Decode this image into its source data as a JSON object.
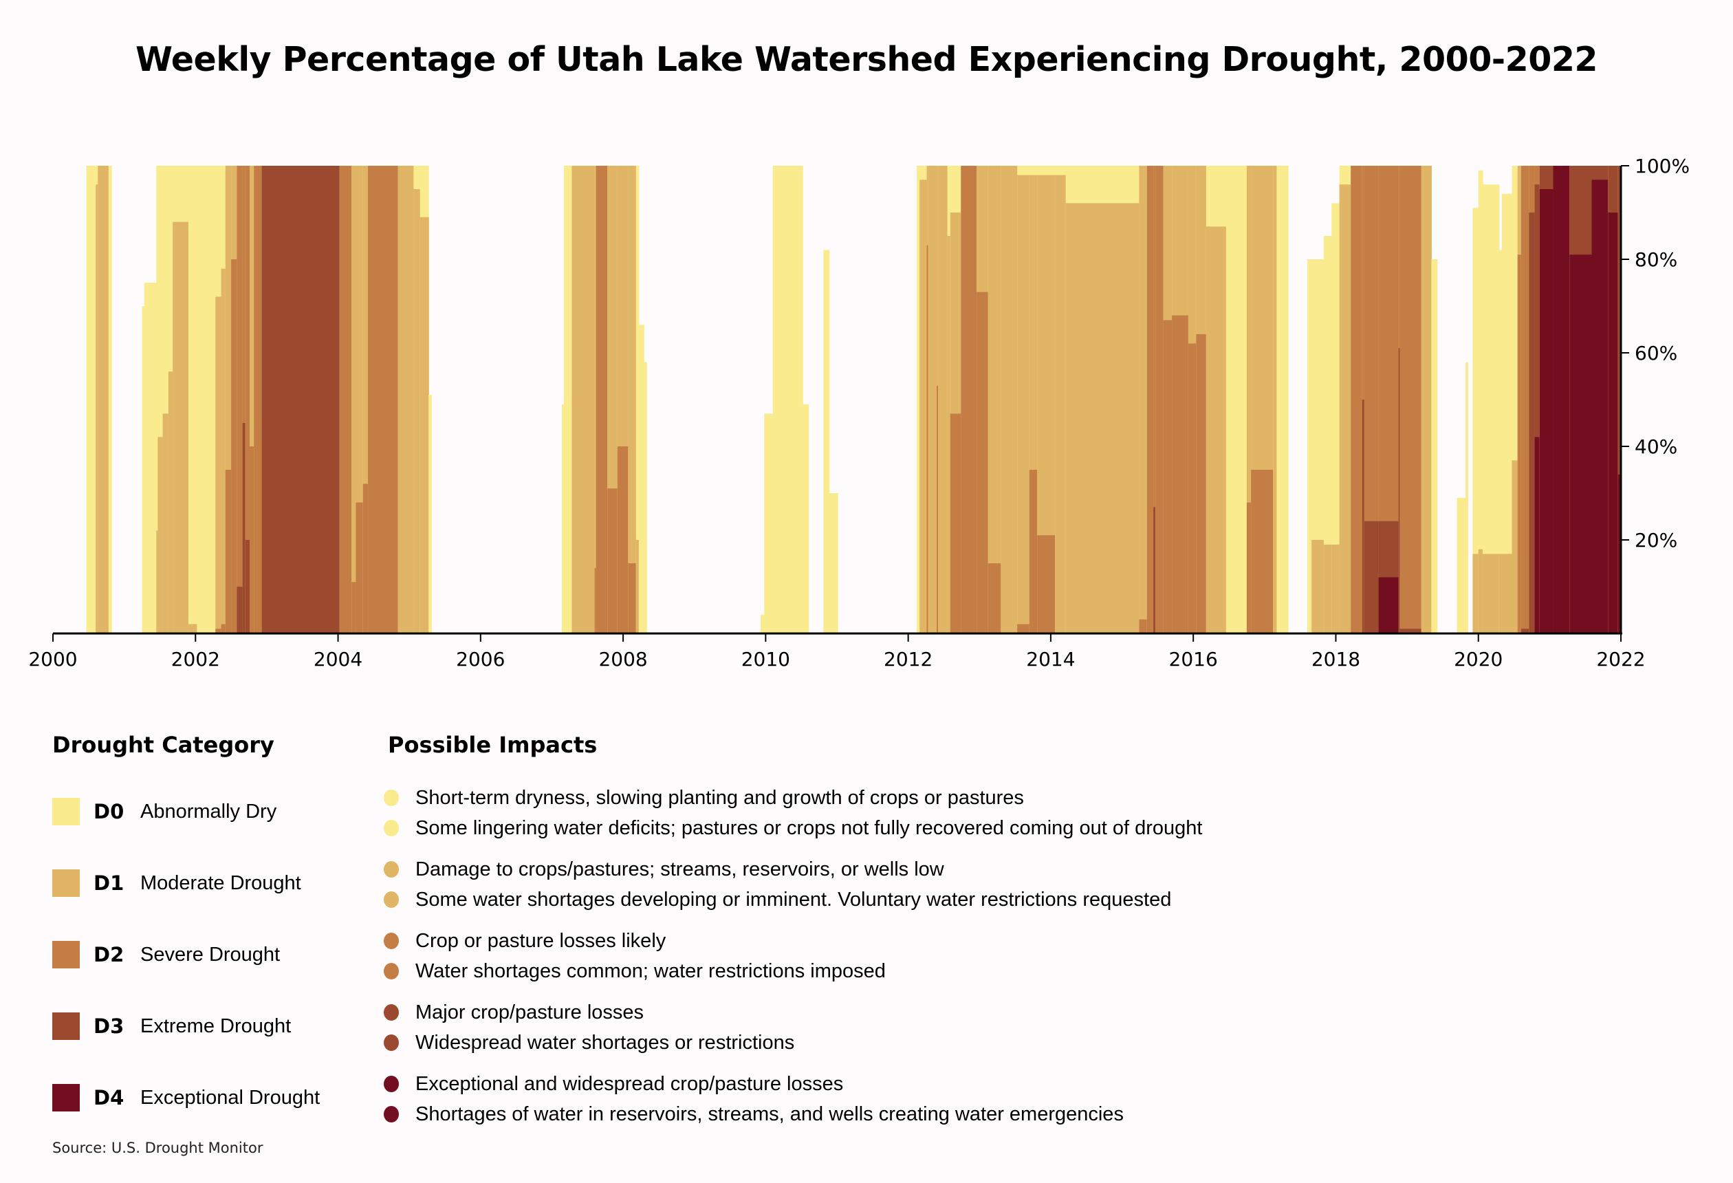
{
  "title": "Weekly Percentage of Utah Lake Watershed Experiencing Drought, 2000-2022",
  "legend": {
    "heading": "Drought Category",
    "categories": [
      {
        "code": "D0",
        "label": "Abnormally Dry",
        "color": "#faeb8e"
      },
      {
        "code": "D1",
        "label": "Moderate Drought",
        "color": "#e1b566"
      },
      {
        "code": "D2",
        "label": "Severe Drought",
        "color": "#c47d45"
      },
      {
        "code": "D3",
        "label": "Extreme Drought",
        "color": "#9c4a2f"
      },
      {
        "code": "D4",
        "label": "Exceptional Drought",
        "color": "#730e20"
      }
    ]
  },
  "impacts": {
    "heading": "Possible Impacts",
    "groups": [
      {
        "category": "D0",
        "color": "#faeb8e",
        "items": [
          "Short-term dryness, slowing planting and growth of crops or pastures",
          "Some lingering water deficits; pastures or crops not fully recovered coming out of drought"
        ]
      },
      {
        "category": "D1",
        "color": "#e1b566",
        "items": [
          "Damage to crops/pastures; streams, reservoirs, or wells low",
          "Some water shortages developing or imminent. Voluntary water restrictions requested"
        ]
      },
      {
        "category": "D2",
        "color": "#c47d45",
        "items": [
          "Crop or pasture losses likely",
          "Water shortages common; water restrictions imposed"
        ]
      },
      {
        "category": "D3",
        "color": "#9c4a2f",
        "items": [
          "Major crop/pasture losses",
          "Widespread water shortages or restrictions"
        ]
      },
      {
        "category": "D4",
        "color": "#730e20",
        "items": [
          "Exceptional and widespread crop/pasture losses",
          "Shortages of water in reservoirs, streams, and wells creating water emergencies"
        ]
      }
    ]
  },
  "source": "Source: U.S. Drought Monitor",
  "chart_data": {
    "type": "area",
    "title": "Weekly Percentage of Utah Lake Watershed Experiencing Drought, 2000-2022",
    "xlabel": "",
    "ylabel": "",
    "xlim": [
      2000,
      2022
    ],
    "ylim": [
      0,
      100
    ],
    "x_ticks": [
      "2000",
      "2002",
      "2004",
      "2006",
      "2008",
      "2010",
      "2012",
      "2014",
      "2016",
      "2018",
      "2020",
      "2022"
    ],
    "x_tick_values": [
      2000,
      2002,
      2004,
      2006,
      2008,
      2010,
      2012,
      2014,
      2016,
      2018,
      2020,
      2022
    ],
    "y_ticks": [
      "20%",
      "40%",
      "60%",
      "80%",
      "100%"
    ],
    "y_tick_values": [
      20,
      40,
      60,
      80,
      100
    ],
    "y_axis_side": "right",
    "grid": false,
    "stacking": "cumulative (D0 = percent area in D0 or worse, D1 = D1 or worse, etc.)",
    "series_names": [
      "D0",
      "D1",
      "D2",
      "D3",
      "D4"
    ],
    "series_colors": [
      "#faeb8e",
      "#e1b566",
      "#c47d45",
      "#9c4a2f",
      "#730e20"
    ],
    "segments_columns": [
      "start",
      "end",
      "D0",
      "D1",
      "D2",
      "D3",
      "D4"
    ],
    "segments": [
      [
        2000.47,
        2000.6,
        100,
        0,
        0,
        0,
        0
      ],
      [
        2000.6,
        2000.63,
        100,
        96,
        0,
        0,
        0
      ],
      [
        2000.63,
        2000.78,
        100,
        100,
        0,
        0,
        0
      ],
      [
        2000.78,
        2000.82,
        100,
        0,
        0,
        0,
        0
      ],
      [
        2001.25,
        2001.28,
        70,
        0,
        0,
        0,
        0
      ],
      [
        2001.28,
        2001.45,
        75,
        0,
        0,
        0,
        0
      ],
      [
        2001.45,
        2001.47,
        100,
        22,
        0,
        0,
        0
      ],
      [
        2001.47,
        2001.54,
        100,
        42,
        0,
        0,
        0
      ],
      [
        2001.54,
        2001.62,
        100,
        47,
        0,
        0,
        0
      ],
      [
        2001.62,
        2001.68,
        100,
        56,
        0,
        0,
        0
      ],
      [
        2001.68,
        2001.9,
        100,
        88,
        0,
        0,
        0
      ],
      [
        2001.9,
        2002.02,
        100,
        2,
        0,
        0,
        0
      ],
      [
        2002.02,
        2002.28,
        100,
        0,
        0,
        0,
        0
      ],
      [
        2002.28,
        2002.36,
        100,
        72,
        1,
        0,
        0
      ],
      [
        2002.36,
        2002.42,
        100,
        78,
        2,
        0,
        0
      ],
      [
        2002.42,
        2002.5,
        100,
        100,
        35,
        0,
        0
      ],
      [
        2002.5,
        2002.58,
        100,
        100,
        80,
        0,
        0
      ],
      [
        2002.58,
        2002.66,
        100,
        100,
        100,
        10,
        0
      ],
      [
        2002.66,
        2002.7,
        100,
        100,
        100,
        45,
        0
      ],
      [
        2002.7,
        2002.76,
        100,
        100,
        100,
        20,
        0
      ],
      [
        2002.76,
        2002.82,
        100,
        100,
        40,
        0,
        0
      ],
      [
        2002.82,
        2002.93,
        100,
        100,
        100,
        0,
        0
      ],
      [
        2002.93,
        2004.02,
        100,
        100,
        100,
        100,
        0
      ],
      [
        2004.02,
        2004.19,
        100,
        100,
        100,
        0,
        0
      ],
      [
        2004.19,
        2004.25,
        100,
        100,
        11,
        0,
        0
      ],
      [
        2004.25,
        2004.35,
        100,
        100,
        28,
        0,
        0
      ],
      [
        2004.35,
        2004.42,
        100,
        100,
        32,
        0,
        0
      ],
      [
        2004.42,
        2004.84,
        100,
        100,
        100,
        0,
        0
      ],
      [
        2004.84,
        2005.06,
        100,
        100,
        0,
        0,
        0
      ],
      [
        2005.06,
        2005.15,
        100,
        95,
        0,
        0,
        0
      ],
      [
        2005.15,
        2005.27,
        100,
        89,
        0,
        0,
        0
      ],
      [
        2005.27,
        2005.31,
        51,
        0,
        0,
        0,
        0
      ],
      [
        2007.14,
        2007.17,
        49,
        0,
        0,
        0,
        0
      ],
      [
        2007.17,
        2007.28,
        100,
        0,
        0,
        0,
        0
      ],
      [
        2007.28,
        2007.6,
        100,
        100,
        0,
        0,
        0
      ],
      [
        2007.6,
        2007.62,
        100,
        100,
        14,
        0,
        0
      ],
      [
        2007.62,
        2007.78,
        100,
        100,
        100,
        0,
        0
      ],
      [
        2007.78,
        2007.92,
        100,
        100,
        31,
        0,
        0
      ],
      [
        2007.92,
        2008.07,
        100,
        100,
        40,
        0,
        0
      ],
      [
        2008.07,
        2008.18,
        100,
        100,
        15,
        0,
        0
      ],
      [
        2008.18,
        2008.22,
        100,
        20,
        0,
        0,
        0
      ],
      [
        2008.22,
        2008.29,
        66,
        0,
        0,
        0,
        0
      ],
      [
        2008.29,
        2008.33,
        58,
        0,
        0,
        0,
        0
      ],
      [
        2009.93,
        2009.98,
        4,
        0,
        0,
        0,
        0
      ],
      [
        2009.98,
        2010.1,
        47,
        0,
        0,
        0,
        0
      ],
      [
        2010.1,
        2010.52,
        100,
        0,
        0,
        0,
        0
      ],
      [
        2010.52,
        2010.6,
        49,
        0,
        0,
        0,
        0
      ],
      [
        2010.81,
        2010.89,
        82,
        0,
        0,
        0,
        0
      ],
      [
        2010.89,
        2011.01,
        30,
        0,
        0,
        0,
        0
      ],
      [
        2012.12,
        2012.16,
        100,
        0,
        0,
        0,
        0
      ],
      [
        2012.16,
        2012.26,
        100,
        97,
        0,
        0,
        0
      ],
      [
        2012.26,
        2012.28,
        100,
        100,
        83,
        0,
        0
      ],
      [
        2012.28,
        2012.4,
        100,
        100,
        0,
        0,
        0
      ],
      [
        2012.4,
        2012.42,
        100,
        100,
        53,
        0,
        0
      ],
      [
        2012.42,
        2012.55,
        100,
        100,
        0,
        0,
        0
      ],
      [
        2012.55,
        2012.59,
        100,
        85,
        0,
        0,
        0
      ],
      [
        2012.59,
        2012.74,
        100,
        90,
        47,
        0,
        0
      ],
      [
        2012.74,
        2012.96,
        100,
        100,
        100,
        0,
        0
      ],
      [
        2012.96,
        2013.12,
        100,
        100,
        73,
        0,
        0
      ],
      [
        2013.12,
        2013.3,
        100,
        100,
        15,
        0,
        0
      ],
      [
        2013.3,
        2013.53,
        100,
        100,
        0,
        0,
        0
      ],
      [
        2013.53,
        2013.7,
        100,
        98,
        2,
        0,
        0
      ],
      [
        2013.7,
        2013.81,
        100,
        98,
        35,
        0,
        0
      ],
      [
        2013.81,
        2014.06,
        100,
        98,
        21,
        0,
        0
      ],
      [
        2014.06,
        2014.21,
        100,
        98,
        0,
        0,
        0
      ],
      [
        2014.21,
        2015.24,
        100,
        92,
        0,
        0,
        0
      ],
      [
        2015.24,
        2015.35,
        100,
        100,
        3,
        0,
        0
      ],
      [
        2015.35,
        2015.44,
        100,
        100,
        100,
        0,
        0
      ],
      [
        2015.44,
        2015.47,
        100,
        100,
        100,
        27,
        0
      ],
      [
        2015.47,
        2015.58,
        100,
        100,
        100,
        0,
        0
      ],
      [
        2015.58,
        2015.7,
        100,
        100,
        67,
        0,
        0
      ],
      [
        2015.7,
        2015.93,
        100,
        100,
        68,
        0,
        0
      ],
      [
        2015.93,
        2016.04,
        100,
        100,
        62,
        0,
        0
      ],
      [
        2016.04,
        2016.18,
        100,
        100,
        64,
        0,
        0
      ],
      [
        2016.18,
        2016.46,
        100,
        87,
        0,
        0,
        0
      ],
      [
        2016.46,
        2016.75,
        100,
        0,
        0,
        0,
        0
      ],
      [
        2016.75,
        2016.81,
        100,
        100,
        28,
        0,
        0
      ],
      [
        2016.81,
        2017.12,
        100,
        100,
        35,
        0,
        0
      ],
      [
        2017.12,
        2017.17,
        100,
        100,
        0,
        0,
        0
      ],
      [
        2017.17,
        2017.33,
        100,
        0,
        0,
        0,
        0
      ],
      [
        2017.6,
        2017.66,
        80,
        0,
        0,
        0,
        0
      ],
      [
        2017.66,
        2017.83,
        80,
        20,
        0,
        0,
        0
      ],
      [
        2017.83,
        2017.94,
        85,
        19,
        0,
        0,
        0
      ],
      [
        2017.94,
        2018.05,
        92,
        19,
        0,
        0,
        0
      ],
      [
        2018.05,
        2018.21,
        100,
        96,
        0,
        0,
        0
      ],
      [
        2018.21,
        2018.37,
        100,
        100,
        100,
        0,
        0
      ],
      [
        2018.37,
        2018.4,
        100,
        100,
        100,
        50,
        0
      ],
      [
        2018.4,
        2018.6,
        100,
        100,
        100,
        24,
        0
      ],
      [
        2018.6,
        2018.88,
        100,
        100,
        100,
        24,
        12
      ],
      [
        2018.88,
        2018.9,
        100,
        100,
        100,
        61,
        0
      ],
      [
        2018.9,
        2019.2,
        100,
        100,
        100,
        1,
        0
      ],
      [
        2019.2,
        2019.34,
        100,
        100,
        0,
        0,
        0
      ],
      [
        2019.34,
        2019.42,
        80,
        0,
        0,
        0,
        0
      ],
      [
        2019.7,
        2019.82,
        29,
        0,
        0,
        0,
        0
      ],
      [
        2019.82,
        2019.85,
        58,
        0,
        0,
        0,
        0
      ],
      [
        2019.92,
        2020.0,
        91,
        17,
        0,
        0,
        0
      ],
      [
        2020.0,
        2020.06,
        99,
        18,
        0,
        0,
        0
      ],
      [
        2020.06,
        2020.29,
        96,
        17,
        0,
        0,
        0
      ],
      [
        2020.29,
        2020.33,
        82,
        17,
        0,
        0,
        0
      ],
      [
        2020.33,
        2020.47,
        94,
        17,
        0,
        0,
        0
      ],
      [
        2020.47,
        2020.55,
        100,
        37,
        0,
        0,
        0
      ],
      [
        2020.55,
        2020.6,
        100,
        100,
        81,
        0,
        0
      ],
      [
        2020.6,
        2020.71,
        100,
        100,
        100,
        1,
        0
      ],
      [
        2020.71,
        2020.79,
        100,
        100,
        100,
        90,
        0
      ],
      [
        2020.79,
        2020.86,
        100,
        100,
        100,
        96,
        42
      ],
      [
        2020.86,
        2021.05,
        100,
        100,
        100,
        100,
        95
      ],
      [
        2021.05,
        2021.28,
        100,
        100,
        100,
        100,
        100
      ],
      [
        2021.28,
        2021.59,
        100,
        100,
        100,
        100,
        81
      ],
      [
        2021.59,
        2021.82,
        100,
        100,
        100,
        100,
        97
      ],
      [
        2021.82,
        2021.96,
        100,
        100,
        100,
        100,
        90
      ],
      [
        2021.96,
        2022.0,
        100,
        100,
        100,
        100,
        34
      ]
    ]
  }
}
